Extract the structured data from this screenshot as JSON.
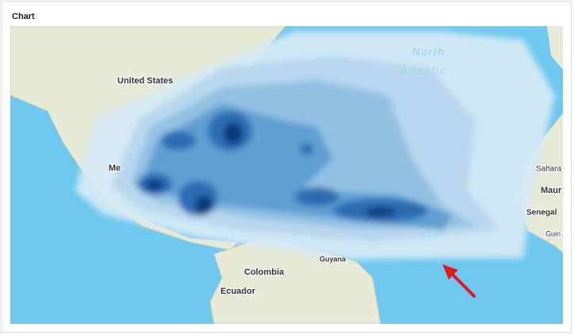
{
  "header": {
    "title": "Chart"
  },
  "map": {
    "labels": {
      "united_states": "United States",
      "mexico": "Me",
      "colombia": "Colombia",
      "ecuador": "Ecuador",
      "guyana": "Guyana",
      "north": "North",
      "atlantic": "Atlantic",
      "sahara": "Sahara",
      "mauritania": "Maur",
      "senegal": "Senegal",
      "guinea": "Guin"
    }
  }
}
